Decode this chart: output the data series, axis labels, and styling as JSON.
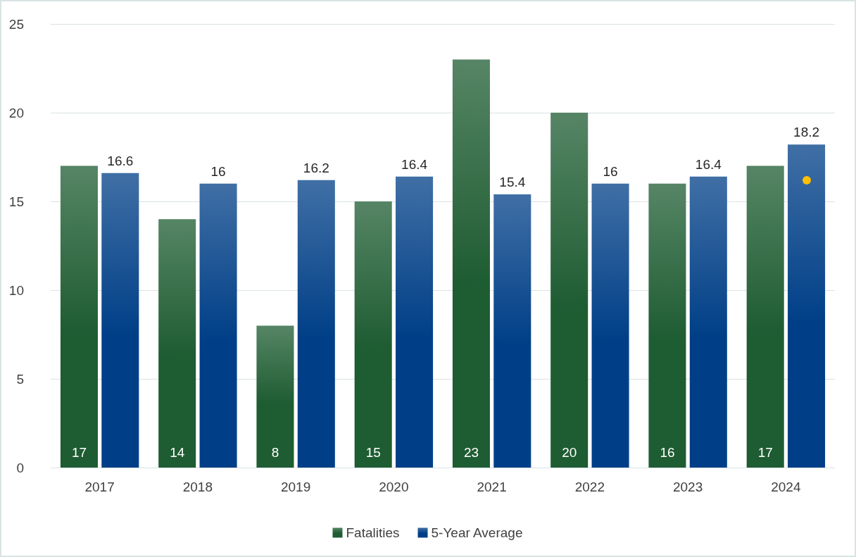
{
  "chart_data": {
    "type": "bar",
    "categories": [
      "2017",
      "2018",
      "2019",
      "2020",
      "2021",
      "2022",
      "2023",
      "2024"
    ],
    "series": [
      {
        "name": "Fatalities",
        "color": "#1e5c32",
        "values": [
          17,
          14,
          8,
          15,
          23,
          20,
          16,
          17
        ]
      },
      {
        "name": "5-Year Average",
        "color": "#003f87",
        "values": [
          16.6,
          16,
          16.2,
          16.4,
          15.4,
          16,
          16.4,
          18.2
        ]
      }
    ],
    "ylim": [
      0,
      25
    ],
    "yticks": [
      0,
      5,
      10,
      15,
      20,
      25
    ],
    "grid": "y",
    "legend": "bottom",
    "data_labels": true
  }
}
